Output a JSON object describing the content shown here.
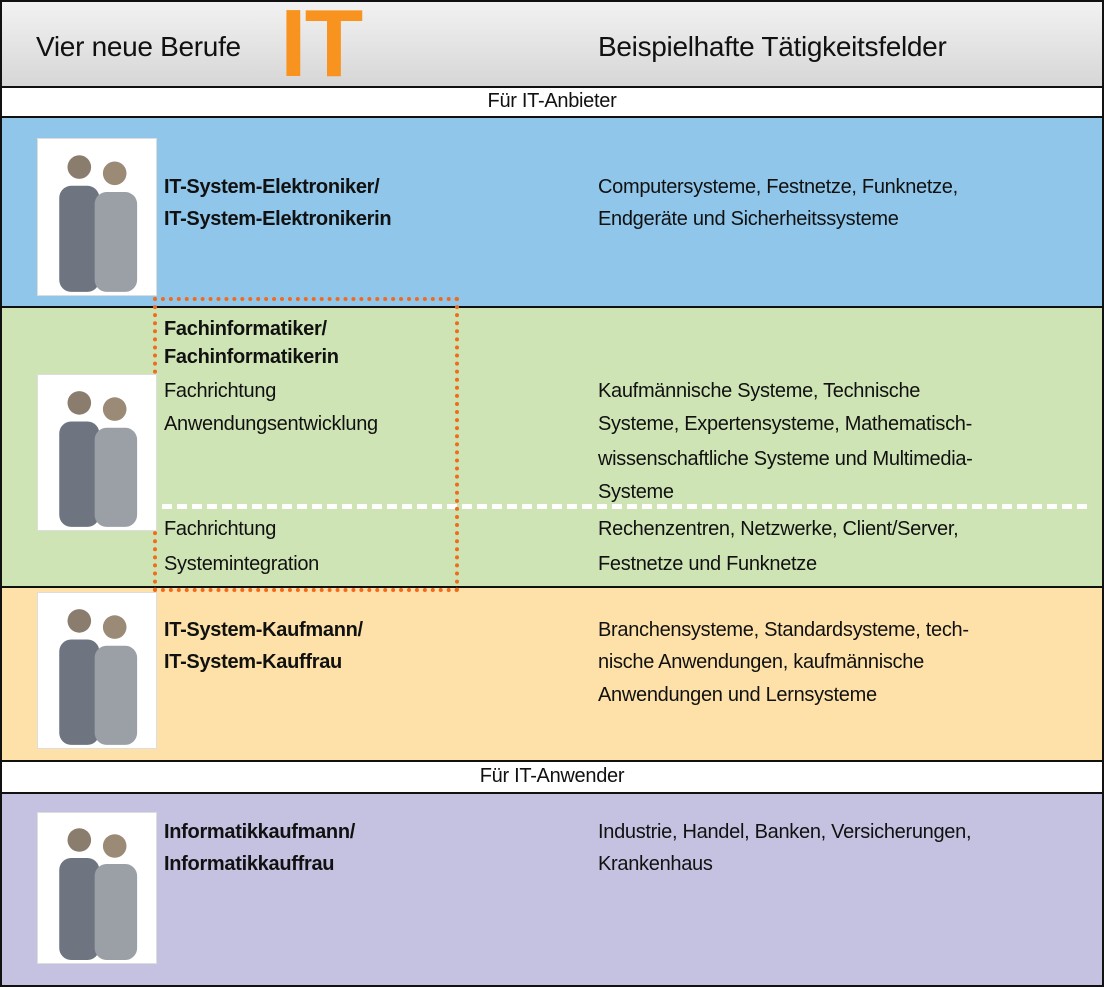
{
  "header": {
    "title": "Vier neue Berufe",
    "logo": "IT",
    "column_title": "Beispielhafte Tätigkeitsfelder"
  },
  "groups": [
    {
      "label": "Für IT-Anbieter",
      "professions": [
        {
          "title": [
            "IT-System-Elektroniker/",
            "IT-System-Elektronikerin"
          ],
          "fields": [
            "Computersysteme, Festnetze, Funknetze,",
            "Endgeräte und Sicherheitssysteme"
          ]
        },
        {
          "title": [
            "Fachinformatiker/",
            "Fachinformatikerin"
          ],
          "specializations": [
            {
              "name": [
                "Fachrichtung",
                "Anwendungsentwicklung"
              ],
              "fields": [
                "Kaufmännische Systeme, Technische",
                "Systeme, Expertensysteme, Mathematisch-",
                "wissenschaftliche Systeme und Multimedia-",
                "Systeme"
              ]
            },
            {
              "name": [
                "Fachrichtung",
                "Systemintegration"
              ],
              "fields": [
                "Rechenzentren, Netzwerke, Client/Server,",
                "Festnetze und Funknetze"
              ]
            }
          ]
        },
        {
          "title": [
            "IT-System-Kaufmann/",
            "IT-System-Kauffrau"
          ],
          "fields": [
            "Branchensysteme, Standardsysteme, tech-",
            "nische Anwendungen, kaufmännische",
            "Anwendungen und Lernsysteme"
          ]
        }
      ]
    },
    {
      "label": "Für IT-Anwender",
      "professions": [
        {
          "title": [
            "Informatikkaufmann/",
            "Informatikkauffrau"
          ],
          "fields": [
            "Industrie, Handel, Banken, Versicherungen,",
            "Krankenhaus"
          ]
        }
      ]
    }
  ]
}
